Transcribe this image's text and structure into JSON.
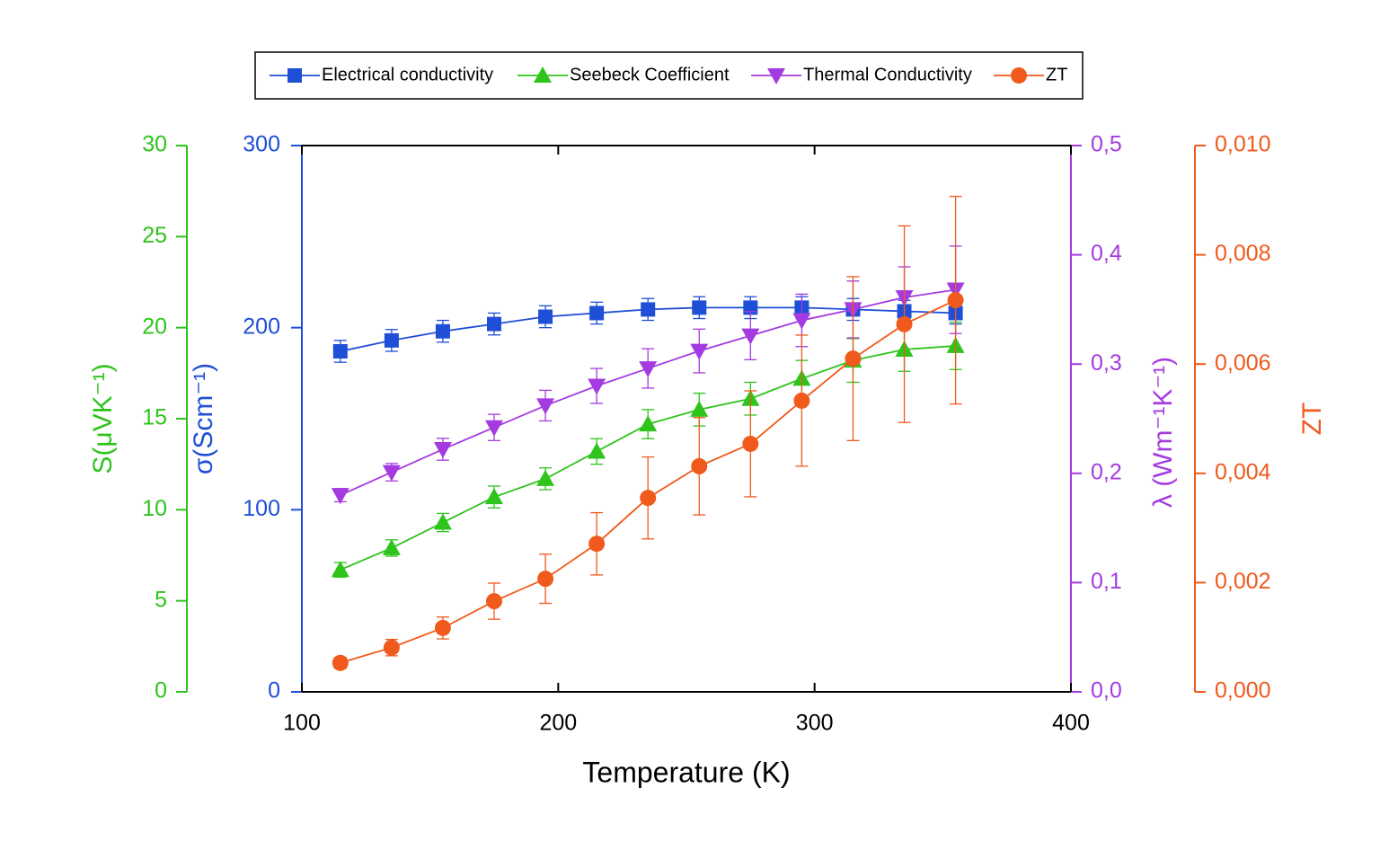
{
  "chart_data": {
    "type": "line",
    "x_label": "Temperature (K)",
    "x": [
      115,
      135,
      155,
      175,
      195,
      215,
      235,
      255,
      275,
      295,
      315,
      335,
      355
    ],
    "xlim": [
      100,
      400
    ],
    "xticks": [
      100,
      200,
      300,
      400
    ],
    "ylabel": "σ(Scm⁻¹)",
    "ylim": [
      0,
      300
    ],
    "yticks": [
      0,
      100,
      200,
      300
    ],
    "y2label": "S(μVK⁻¹)",
    "y2lim": [
      0,
      30
    ],
    "y2ticks": [
      0,
      5,
      10,
      15,
      20,
      25,
      30
    ],
    "y3label": "λ (Wm⁻¹K⁻¹)",
    "y3lim": [
      0,
      0.5
    ],
    "y3ticks": [
      {
        "value": 0,
        "label": "0,0"
      },
      {
        "value": 0.1,
        "label": "0,1"
      },
      {
        "value": 0.2,
        "label": "0,2"
      },
      {
        "value": 0.3,
        "label": "0,3"
      },
      {
        "value": 0.4,
        "label": "0,4"
      },
      {
        "value": 0.5,
        "label": "0,5"
      }
    ],
    "y4label": "ZT",
    "y4lim": [
      0,
      0.01
    ],
    "y4ticks": [
      {
        "value": 0,
        "label": "0,000"
      },
      {
        "value": 0.002,
        "label": "0,002"
      },
      {
        "value": 0.004,
        "label": "0,004"
      },
      {
        "value": 0.006,
        "label": "0,006"
      },
      {
        "value": 0.008,
        "label": "0,008"
      },
      {
        "value": 0.01,
        "label": "0,010"
      }
    ],
    "series": [
      {
        "name": "Electrical conductivity",
        "color": "#1f4fd6",
        "axis": "y",
        "marker": "square",
        "values": [
          187,
          193,
          198,
          202,
          206,
          208,
          210,
          211,
          211,
          211,
          210,
          209,
          208
        ],
        "errors": [
          6,
          6,
          6,
          6,
          6,
          6,
          6,
          6,
          6,
          6,
          6,
          6,
          6
        ]
      },
      {
        "name": "Seebeck Coefficient",
        "color": "#2ec41c",
        "axis": "y2",
        "marker": "triangle-up",
        "values": [
          6.7,
          7.9,
          9.3,
          10.7,
          11.7,
          13.2,
          14.7,
          15.5,
          16.1,
          17.2,
          18.2,
          18.8,
          19.0
        ],
        "errors": [
          0.4,
          0.45,
          0.5,
          0.6,
          0.6,
          0.7,
          0.8,
          0.9,
          0.9,
          1.0,
          1.2,
          1.2,
          1.3
        ]
      },
      {
        "name": "Thermal Conductivity",
        "color": "#a43be0",
        "axis": "y3",
        "marker": "triangle-down",
        "values": [
          0.18,
          0.201,
          0.222,
          0.242,
          0.262,
          0.28,
          0.296,
          0.312,
          0.326,
          0.34,
          0.35,
          0.361,
          0.368
        ],
        "errors": [
          0.006,
          0.008,
          0.01,
          0.012,
          0.014,
          0.016,
          0.018,
          0.02,
          0.022,
          0.024,
          0.026,
          0.028,
          0.04
        ]
      },
      {
        "name": "ZT",
        "color": "#f05a1c",
        "axis": "y4",
        "marker": "circle",
        "values": [
          0.00053,
          0.00081,
          0.00117,
          0.00166,
          0.00207,
          0.00271,
          0.00355,
          0.00413,
          0.00454,
          0.00533,
          0.0061,
          0.00673,
          0.00717
        ],
        "errors": [
          0.0001,
          0.00015,
          0.0002,
          0.00033,
          0.00045,
          0.00057,
          0.00075,
          0.00089,
          0.00097,
          0.0012,
          0.0015,
          0.0018,
          0.0019
        ]
      }
    ]
  }
}
